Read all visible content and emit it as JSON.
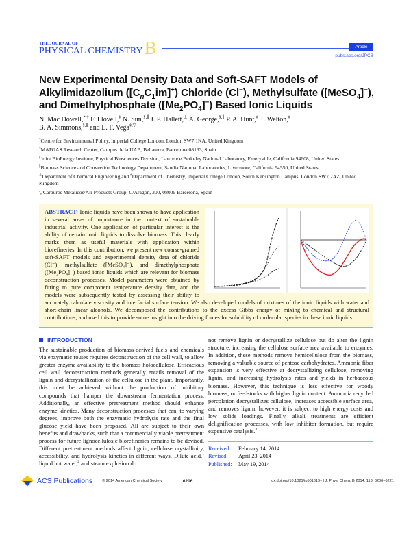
{
  "header": {
    "journal_small": "THE JOURNAL OF",
    "journal_big": "PHYSICAL CHEMISTRY",
    "journal_letter": "B",
    "badge": "Article",
    "url": "pubs.acs.org/JPCB",
    "colors": {
      "brand_blue": "#1a3fe0",
      "letter_yellow": "#f5d84a",
      "abstract_bg": "#fdf8d8"
    }
  },
  "title": {
    "line1": "New Experimental Density Data and Soft-SAFT Models of",
    "line2a": "Alkylimidazolium ([C",
    "line2_sub_n": "n",
    "line2b": "C",
    "line2_sub_1": "1",
    "line2c": "im]",
    "line2_sup": "+",
    "line2d": ") Chloride (Cl",
    "line2_sup2": "−",
    "line2e": "), Methylsulfate ([MeSO",
    "line2_sub_4": "4",
    "line2f": "]",
    "line2_sup3": "−",
    "line2g": "),",
    "line3a": "and Dimethylphosphate ([Me",
    "line3_sub_2": "2",
    "line3b": "PO",
    "line3_sub_4": "4",
    "line3c": "]",
    "line3_sup": "−",
    "line3d": ") Based Ionic Liquids"
  },
  "authors": [
    {
      "name": "N. Mac Dowell,",
      "marks": "*,†"
    },
    {
      "name": "F. Llovell,",
      "marks": "‡"
    },
    {
      "name": "N. Sun,",
      "marks": "§,∥"
    },
    {
      "name": "J. P. Hallett,",
      "marks": "⊥"
    },
    {
      "name": "A. George,",
      "marks": "§,∥"
    },
    {
      "name": "P. A. Hunt,",
      "marks": "#"
    },
    {
      "name": "T. Welton,",
      "marks": "#"
    },
    {
      "name": "B. A. Simmons,",
      "marks": "§,∥"
    },
    {
      "name": "and L. F. Vega",
      "marks": "‡,▽"
    }
  ],
  "affiliations": [
    {
      "mark": "†",
      "text": "Centre for Environmental Policy, Imperial College London, London SW7 1NA, United Kingdom"
    },
    {
      "mark": "‡",
      "text": "MATGAS Research Center, Campus de la UAB, Bellaterra, Barcelona 08193, Spain"
    },
    {
      "mark": "§",
      "text": "Joint BioEnergy Institute, Physical Biosciences Division, Lawrence Berkeley National Laboratory, Emeryville, California 94608, United States"
    },
    {
      "mark": "∥",
      "text": "Biomass Science and Conversion Technology Department, Sandia National Laboratories, Livermore, California 94550, United States"
    },
    {
      "mark": "⊥",
      "text": "Department of Chemical Engineering and ",
      "mark2": "#",
      "text2": "Department of Chemistry, Imperial College London, South Kensington Campus, London SW7 2AZ, United Kingdom"
    },
    {
      "mark": "▽",
      "text": "Carburos Metálicos/Air Products Group, C/Aragón, 300, 08009 Barcelona, Spain"
    }
  ],
  "abstract": {
    "label": "ABSTRACT:",
    "text": "Ionic liquids have been shown to have application in several areas of importance in the context of sustainable industrial activity. One application of particular interest is the ability of certain ionic liquids to dissolve biomass. This clearly marks them as useful materials with application within biorefineries. In this contribution, we present new coarse-grained soft-SAFT models and experimental density data of chloride (Cl⁻), methylsulfate ([MeSO₄]⁻), and dimethylphosphate ([Me₂PO₄]⁻) based ionic liquids which are relevant for biomass deconstruction processes. Model parameters were obtained by fitting to pure component temperature density data, and the models were subsequently tested by assessing their ability to accurately calculate viscosity and interfacial surface tension. We also developed models of mixtures of the ionic liquids with water and short-chain linear alcohols. We decomposed the contributions to the excess Gibbs energy of mixing to chemical and structural contributions, and used this to provide some insight into the driving forces for solubility of molecular species in these ionic liquids."
  },
  "introduction": {
    "heading": "INTRODUCTION",
    "left_text": "The sustainable production of biomass-derived fuels and chemicals via enzymatic routes requires deconstruction of the cell wall, to allow greater enzyme availability to the biomass holocellulose. Efficacious cell wall deconstruction methods generally entails removal of the lignin and decrystallization of the cellulose in the plant. Importantly, this must be achieved without the production of inhibitory compounds that hamper the downstream fermentation process. Additionally, an effective pretreatment method should enhance enzyme kinetics. Many deconstruction processes that can, to varying degrees, improve both the enzymatic hydrolysis rate and the final glucose yield have been proposed. All are subject to their own benefits and drawbacks, such that a commercially viable pretreatment process for future lignocellulosic biorefineries remains to be devised. Different pretreatment methods affect lignin, cellulose crystallinity, accessibility, and hydrolysis kinetics in different ways. Dilute acid,",
    "ref1": "1",
    "left_text2": " liquid hot water,",
    "ref2": "2",
    "left_text3": " and steam explosion do",
    "right_text": "not remove lignin or decrystallize cellulose but do alter the lignin structure, increasing the cellulose surface area available to enzymes. In addition, these methods remove hemicellulose from the biomass, removing a valuable source of pentose carbohydrates. Ammonia fiber expansion is very effective at decrystallizing cellulose, removing lignin, and increasing hydrolysis rates and yields in herbaceous biomass. However, this technique is less effective for woody biomass, or feedstocks with higher lignin content. Ammonia recycled percolation decrystallizes cellulose, increases accessible surface area, and removes lignin; however, it is subject to high energy costs and low solids loadings. Finally, alkali treatments are efficient delignification processes, with low inhibitor formation, but require expensive catalysis.",
    "ref3": "3"
  },
  "dates": [
    {
      "label": "Received:",
      "value": "February 14, 2014"
    },
    {
      "label": "Revised:",
      "value": "April 23, 2014"
    },
    {
      "label": "Published:",
      "value": "May 19, 2014"
    }
  ],
  "footer": {
    "publisher": "ACS Publications",
    "copyright": "© 2014 American Chemical Society",
    "page": "6206",
    "citation": "dx.doi.org/10.1021/jp501619y | J. Phys. Chem. B 2014, 118, 6206−6221"
  }
}
